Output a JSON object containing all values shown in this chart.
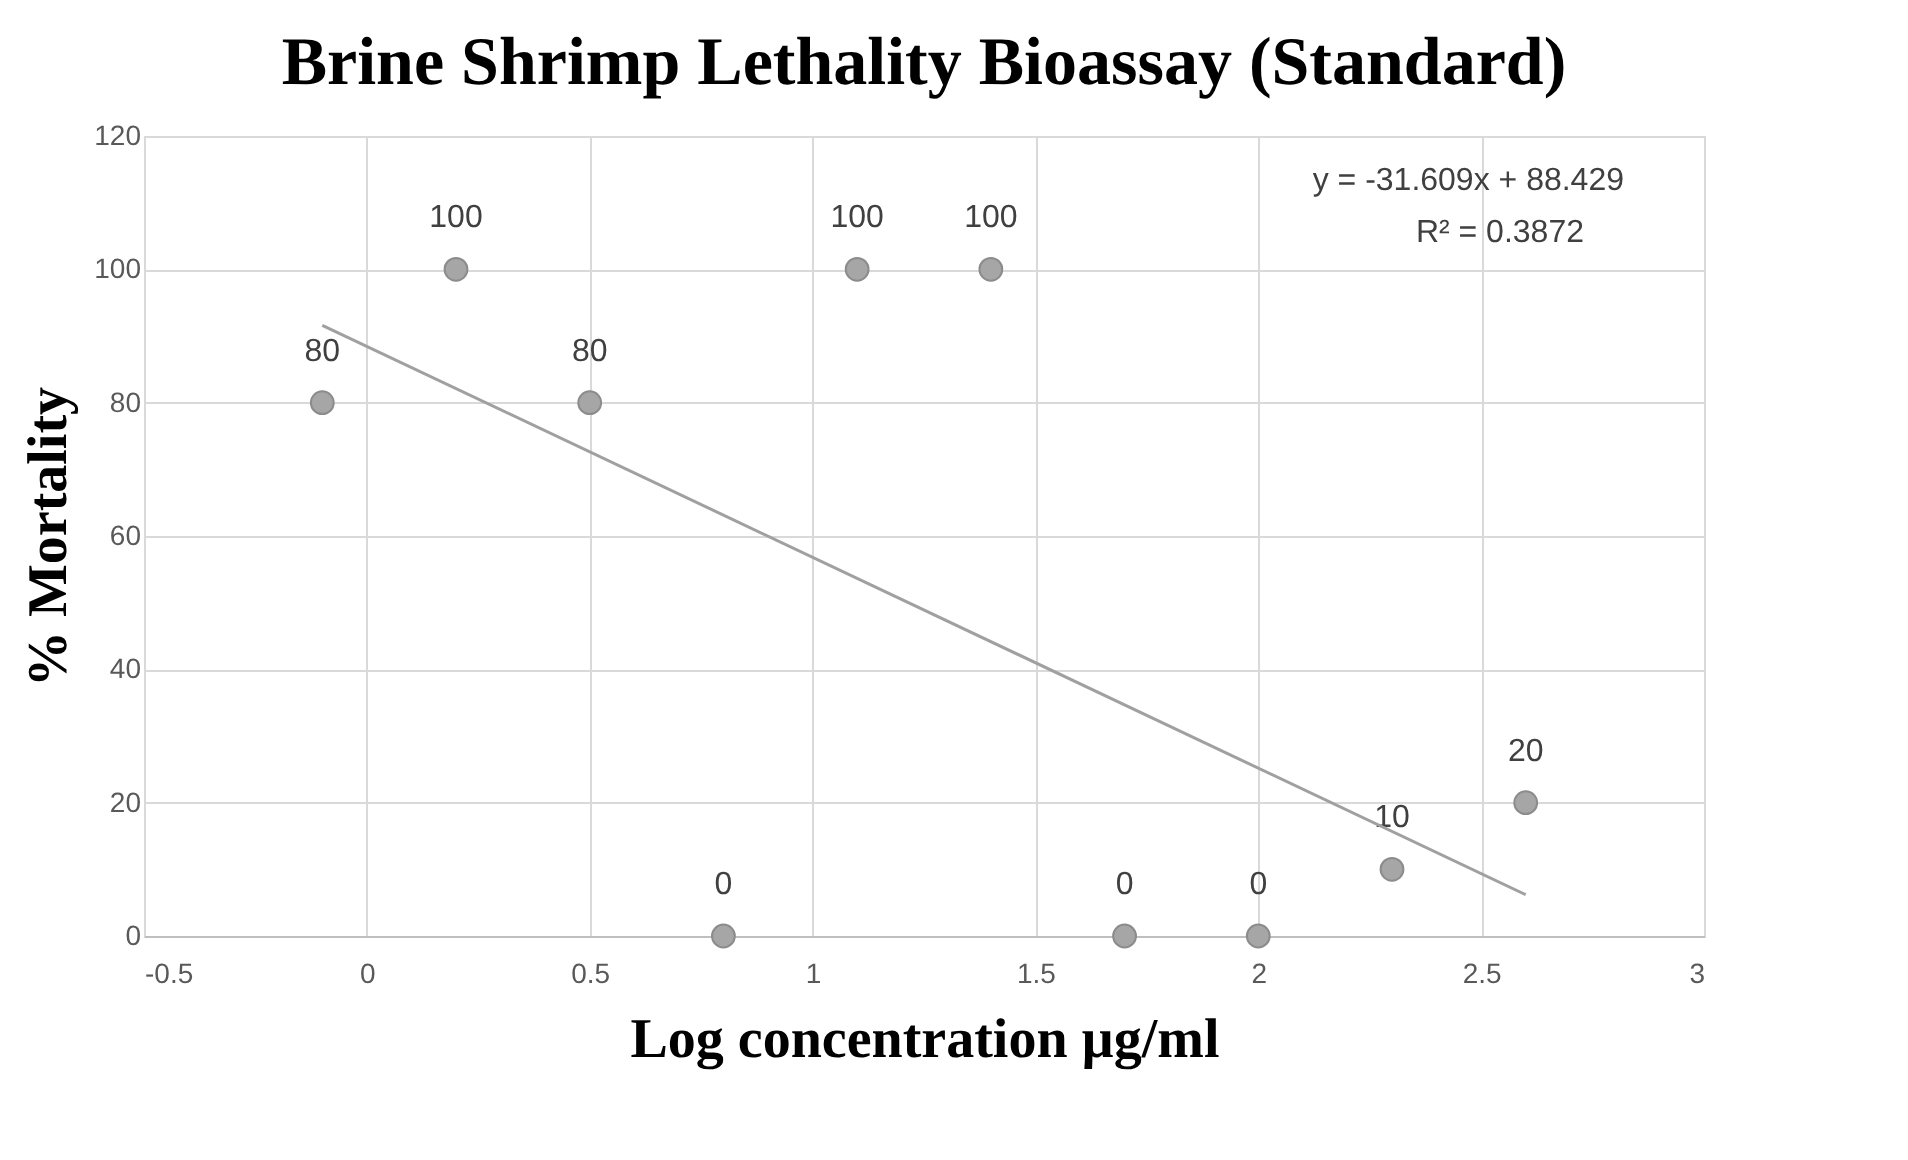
{
  "chart_data": {
    "type": "scatter",
    "title": "Brine Shrimp Lethality Bioassay (Standard)",
    "xlabel": "Log concentration µg/ml",
    "ylabel": "% Mortality",
    "series": [
      {
        "color": "#a6a6a6",
        "x": [
          -0.1,
          0.2,
          0.5,
          0.8,
          1.1,
          1.4,
          1.7,
          2.0,
          2.3,
          2.6
        ],
        "values": [
          80,
          100,
          80,
          0,
          100,
          100,
          0,
          0,
          10,
          20
        ],
        "value_labels": [
          "80",
          "100",
          "80",
          "0",
          "100",
          "100",
          "0",
          "0",
          "10",
          "20"
        ]
      },
      {
        "type": "line",
        "marker": "none",
        "color": "#a0a0a0",
        "x": [
          -0.1,
          2.6
        ],
        "values": [
          91.6,
          6.2
        ]
      }
    ],
    "marker": "circle",
    "grid": true,
    "xlim": [
      -0.5,
      3
    ],
    "xticks": [
      -0.5,
      0,
      0.5,
      1,
      1.5,
      2,
      2.5,
      3
    ],
    "ylim": [
      0,
      120
    ],
    "yticks": [
      0,
      20,
      40,
      60,
      80,
      100,
      120
    ],
    "annotations": [
      "y = -31.609x + 88.429",
      "R² = 0.3872"
    ]
  }
}
